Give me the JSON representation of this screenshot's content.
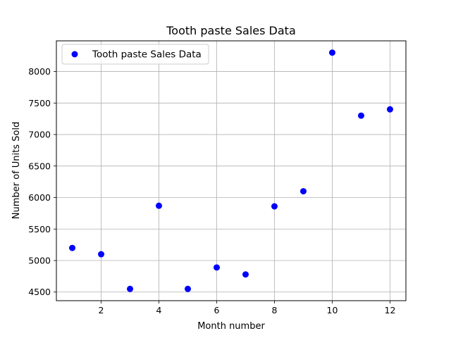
{
  "chart_data": {
    "type": "scatter",
    "title": "Tooth paste Sales Data",
    "xlabel": "Month number",
    "ylabel": "Number of Units Sold",
    "xlim": [
      0.45,
      12.55
    ],
    "ylim": [
      4363,
      8487
    ],
    "xticks": [
      2,
      4,
      6,
      8,
      10,
      12
    ],
    "yticks": [
      4500,
      5000,
      5500,
      6000,
      6500,
      7000,
      7500,
      8000
    ],
    "grid": true,
    "legend_position": "top-left",
    "series": [
      {
        "name": "Tooth paste Sales Data",
        "color": "#0000ff",
        "x": [
          1,
          2,
          3,
          4,
          5,
          6,
          7,
          8,
          9,
          10,
          11,
          12
        ],
        "y": [
          5200,
          5100,
          4550,
          5870,
          4550,
          4890,
          4780,
          5860,
          6100,
          8300,
          7300,
          7400
        ]
      }
    ]
  }
}
